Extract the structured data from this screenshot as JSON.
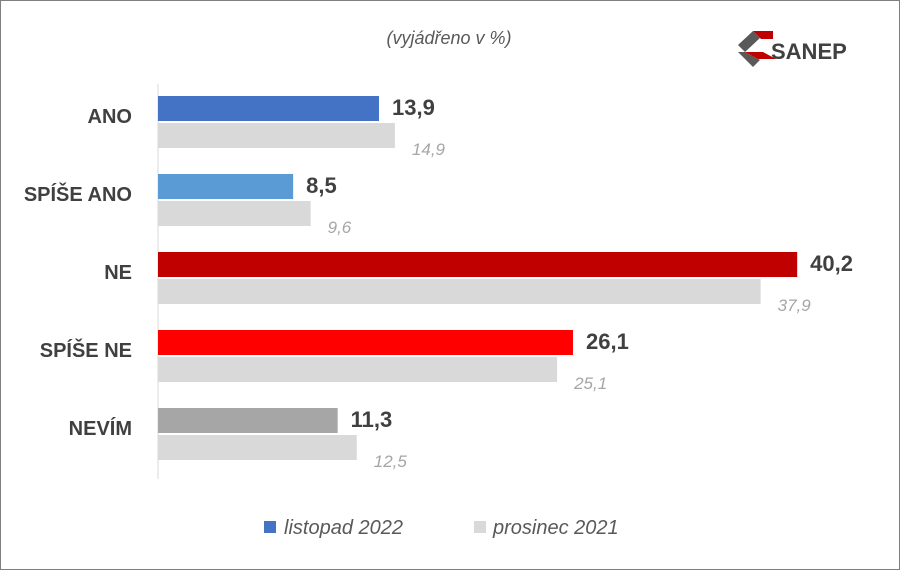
{
  "chart_data": {
    "type": "bar",
    "orientation": "horizontal",
    "subtitle": "(vyjádřeno v %)",
    "categories": [
      "ANO",
      "SPÍŠE ANO",
      "NE",
      "SPÍŠE NE",
      "NEVÍM"
    ],
    "series": [
      {
        "name": "listopad 2022",
        "values": [
          13.9,
          8.5,
          40.2,
          26.1,
          11.3
        ],
        "labels": [
          "13,9",
          "8,5",
          "40,2",
          "26,1",
          "11,3"
        ],
        "colors": [
          "#4472c4",
          "#5b9bd5",
          "#c00000",
          "#ff0000",
          "#a6a6a6"
        ],
        "legend_color": "#4472c4"
      },
      {
        "name": "prosinec 2021",
        "values": [
          14.9,
          9.6,
          37.9,
          25.1,
          12.5
        ],
        "labels": [
          "14,9",
          "9,6",
          "37,9",
          "25,1",
          "12,5"
        ],
        "color": "#d9d9d9"
      }
    ],
    "xlim": [
      0,
      42
    ],
    "grid": false,
    "legend": "bottom-center"
  },
  "logo": {
    "text": "SANEP",
    "colors": {
      "dark": "#595959",
      "red": "#c00000"
    }
  },
  "colors": {
    "category_text": "#404040",
    "value_text": "#404040",
    "prev_value_text": "#a6a6a6",
    "axis": "#d9d9d9"
  }
}
